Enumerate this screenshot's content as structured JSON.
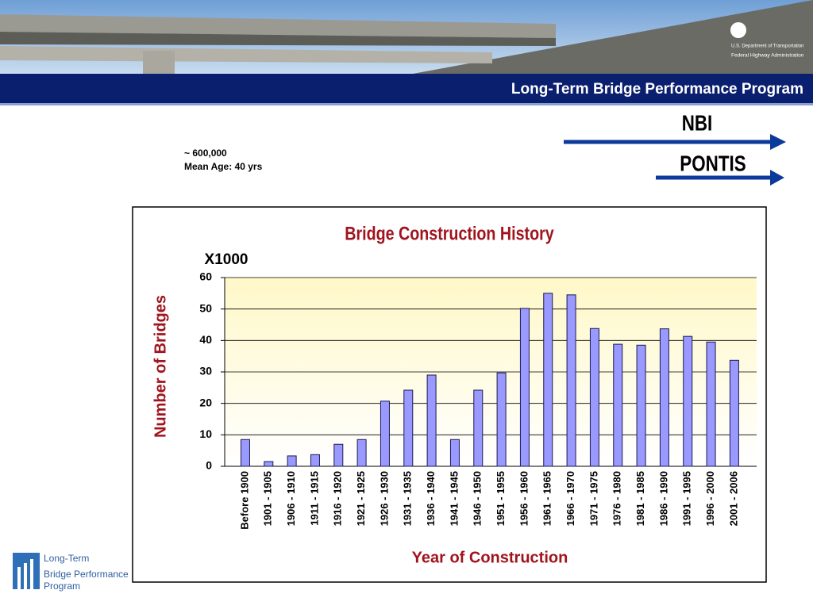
{
  "header": {
    "title": "Long-Term Bridge Performance Program",
    "agency": [
      "U.S. Department of Transportation",
      "Federal Highway Administration"
    ]
  },
  "arrows": [
    "NBI",
    "PONTIS"
  ],
  "note": [
    "~ 600,000",
    "Mean Age: 40 yrs"
  ],
  "logo": [
    "Long-Term",
    "Bridge Performance",
    "Program"
  ],
  "chart_data": {
    "type": "bar",
    "title": "Bridge Construction History",
    "unit_label": "X1000",
    "x_label": "Year of Construction",
    "y_label": "Number of Bridges",
    "categories": [
      "Before 1900",
      "1901 - 1905",
      "1906 - 1910",
      "1911 - 1915",
      "1916 - 1920",
      "1921 - 1925",
      "1926 - 1930",
      "1931 - 1935",
      "1936 - 1940",
      "1941 - 1945",
      "1946 - 1950",
      "1951 - 1955",
      "1956 - 1960",
      "1961 - 1965",
      "1966 - 1970",
      "1971 - 1975",
      "1976 - 1980",
      "1981 - 1985",
      "1986 - 1990",
      "1991 - 1995",
      "1996 - 2000",
      "2001 - 2006"
    ],
    "values": [
      8.5,
      1.5,
      3.3,
      3.7,
      7,
      8.5,
      20.7,
      24.2,
      29,
      8.5,
      24.2,
      29.7,
      50.2,
      55,
      54.5,
      43.8,
      38.8,
      38.5,
      43.7,
      41.3,
      39.5,
      33.7
    ],
    "color": "#9999ff",
    "ylim": [
      0,
      60
    ],
    "yticks": [
      0,
      10,
      20,
      30,
      40,
      50,
      60
    ],
    "grid": true
  }
}
